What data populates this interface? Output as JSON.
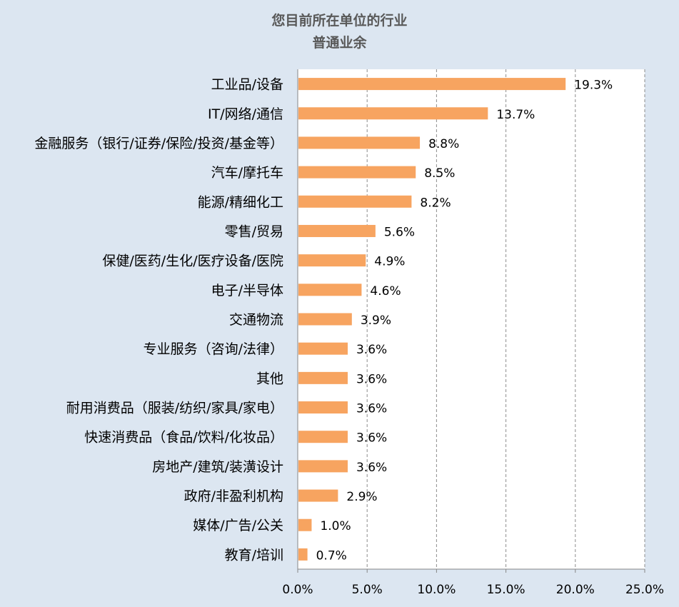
{
  "chart_data": {
    "type": "bar",
    "orientation": "horizontal",
    "title": "您目前所在单位的行业",
    "subtitle": "普通业余",
    "categories": [
      "工业品/设备",
      "IT/网络/通信",
      "金融服务（银行/证券/保险/投资/基金等）",
      "汽车/摩托车",
      "能源/精细化工",
      "零售/贸易",
      "保健/医药/生化/医疗设备/医院",
      "电子/半导体",
      "交通物流",
      "专业服务（咨询/法律）",
      "其他",
      "耐用消费品（服装/纺织/家具/家电）",
      "快速消费品（食品/饮料/化妆品）",
      "房地产/建筑/装潢设计",
      "政府/非盈利机构",
      "媒体/广告/公关",
      "教育/培训"
    ],
    "values": [
      19.3,
      13.7,
      8.8,
      8.5,
      8.2,
      5.6,
      4.9,
      4.6,
      3.9,
      3.6,
      3.6,
      3.6,
      3.6,
      3.6,
      2.9,
      1.0,
      0.7
    ],
    "data_labels": [
      "19.3%",
      "13.7%",
      "8.8%",
      "8.5%",
      "8.2%",
      "5.6%",
      "4.9%",
      "4.6%",
      "3.9%",
      "3.6%",
      "3.6%",
      "3.6%",
      "3.6%",
      "3.6%",
      "2.9%",
      "1.0%",
      "0.7%"
    ],
    "xlim": [
      0,
      25
    ],
    "x_ticks": [
      0,
      5,
      10,
      15,
      20,
      25
    ],
    "x_tick_labels": [
      "0.0%",
      "5.0%",
      "10.0%",
      "15.0%",
      "20.0%",
      "25.0%"
    ],
    "xlabel": "",
    "ylabel": "",
    "grid": "vertical dashed",
    "legend": "none",
    "colors": {
      "bar": "#f7a460",
      "background": "#dce6f1",
      "plot_background": "#ffffff",
      "gridline": "#8c8c8c",
      "title_text": "#595959",
      "label_text": "#000000"
    }
  }
}
